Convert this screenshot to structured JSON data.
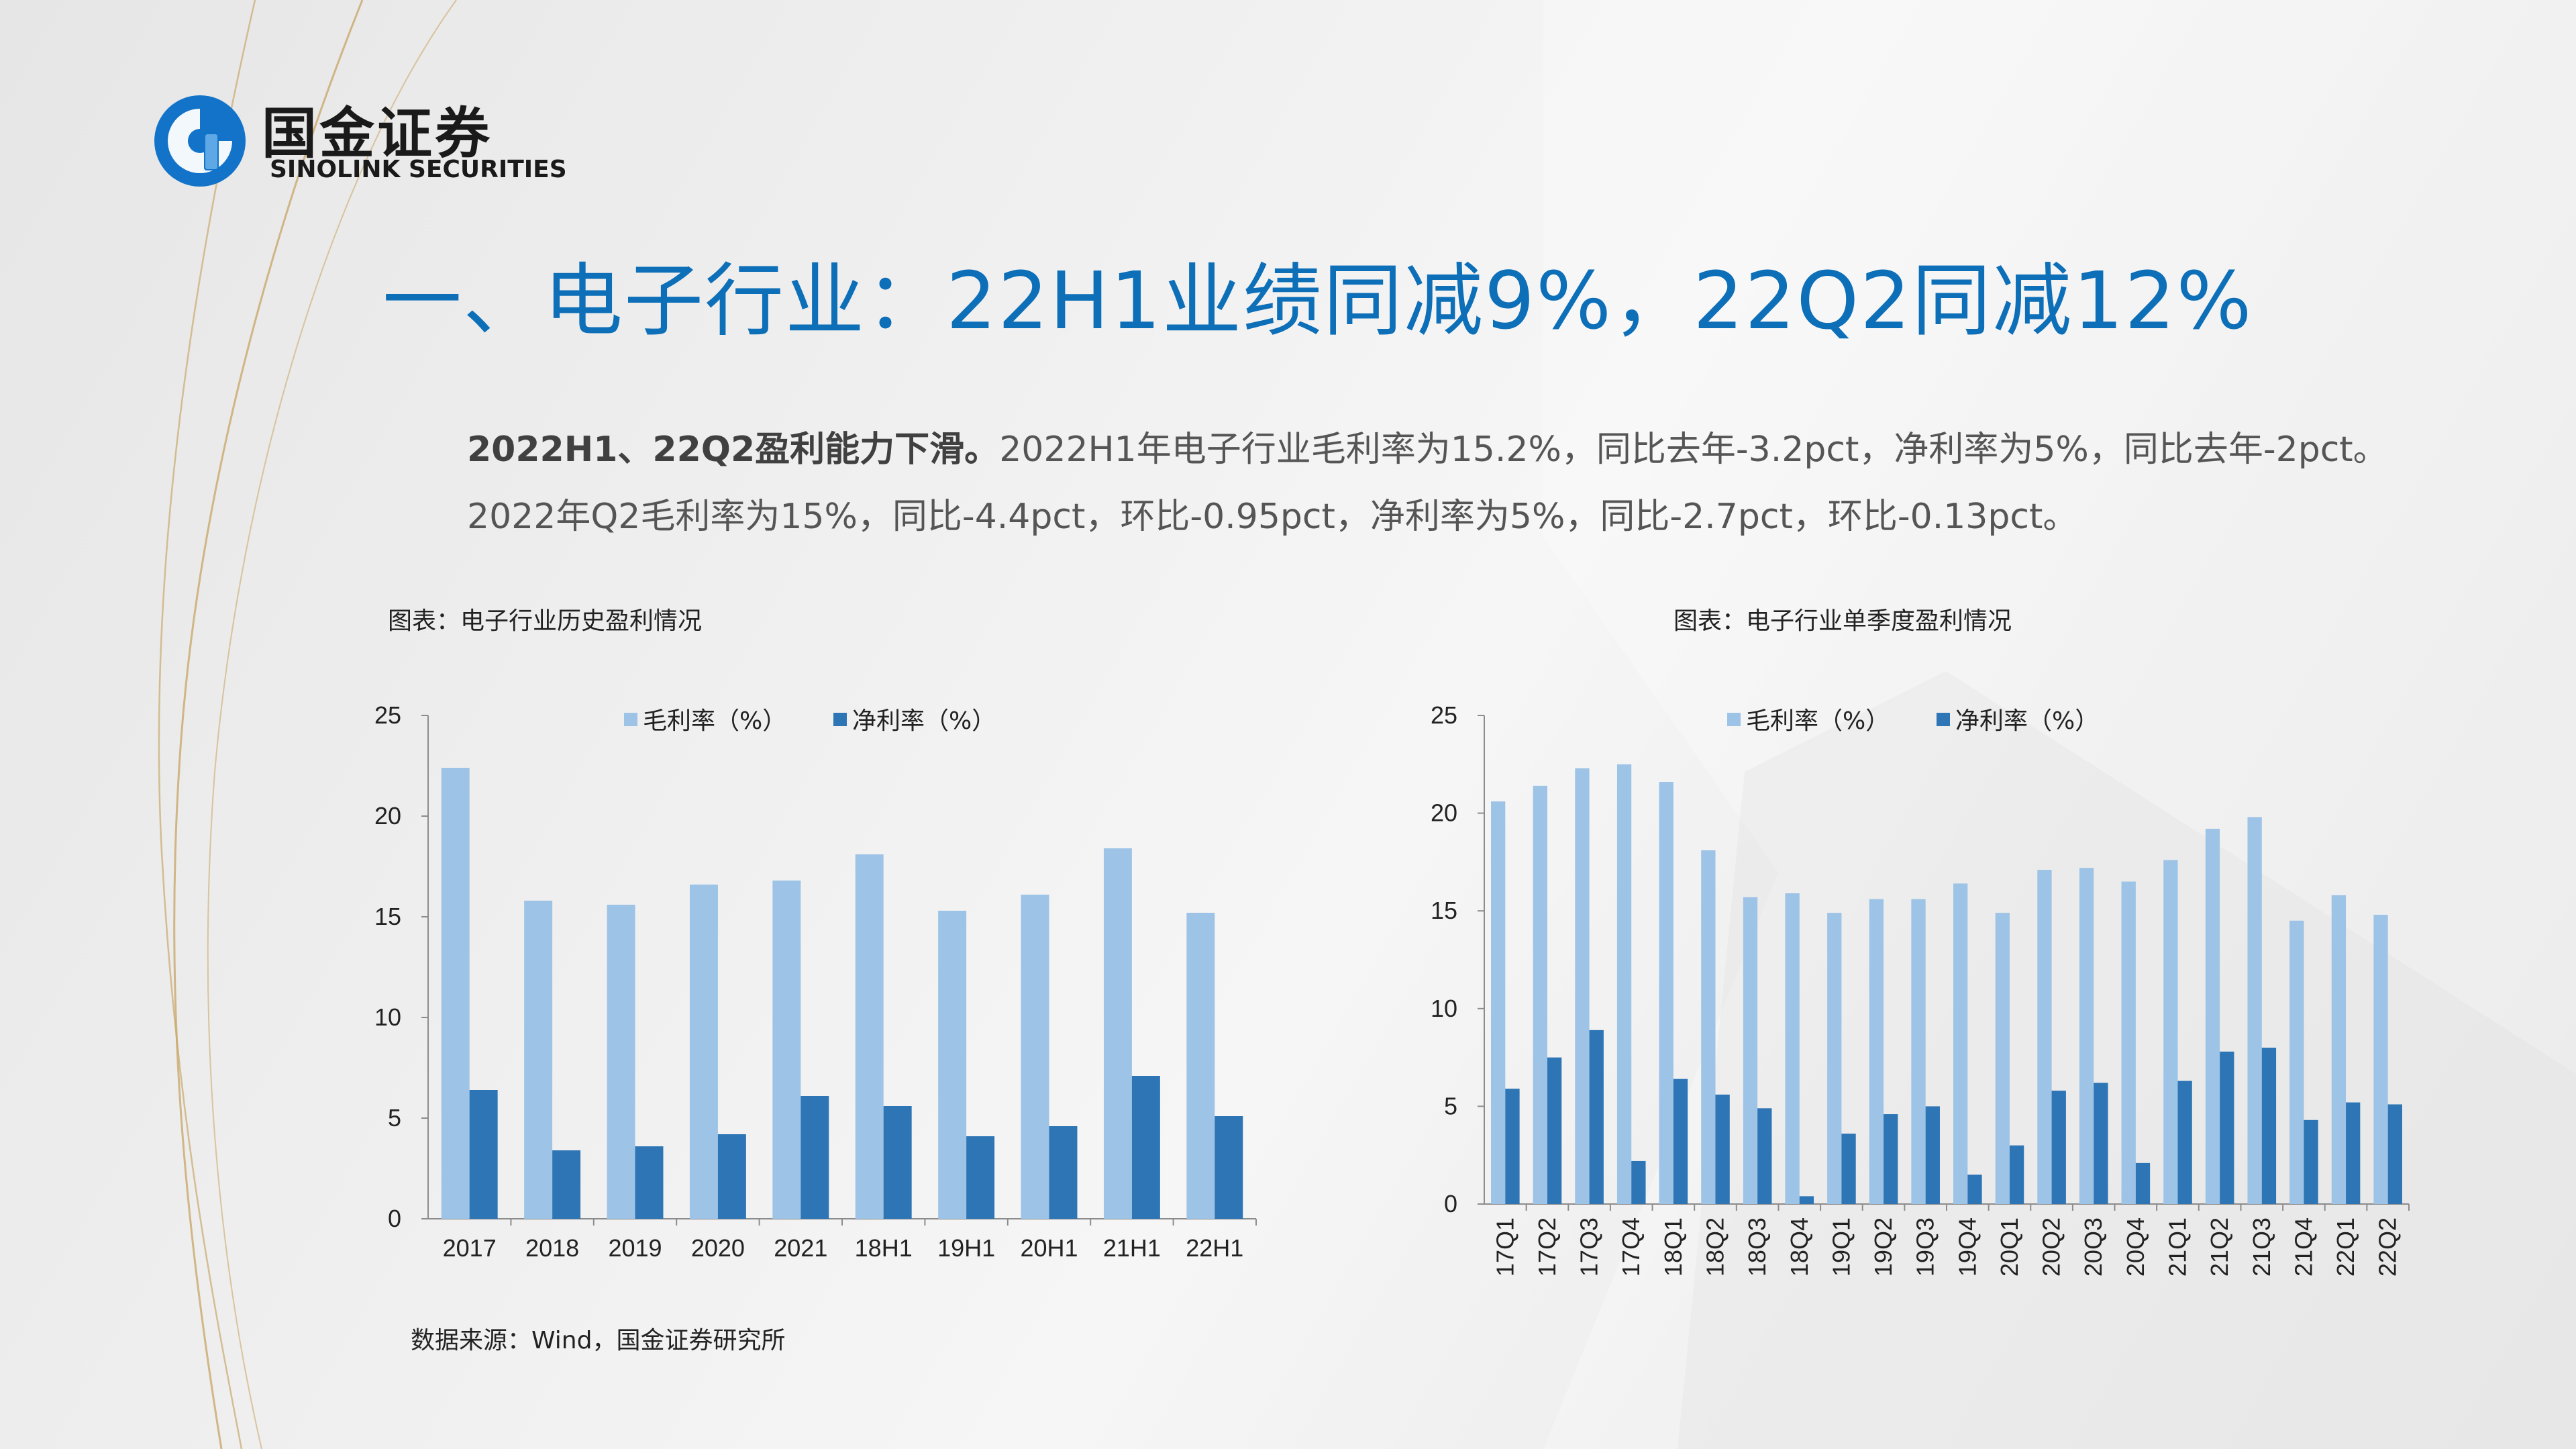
{
  "brand": {
    "name_cn": "国金证券",
    "name_en": "SINOLINK SECURITIES",
    "colors": {
      "blue": "#1273c9",
      "gold": "#c9a86b"
    }
  },
  "title": "一、电子行业：22H1业绩同减9%，22Q2同减12%",
  "summary": {
    "lead": "2022H1、22Q2盈利能力下滑。",
    "line1_rest": "2022H1年电子行业毛利率为15.2%，同比去年-3.2pct，净利率为5%，同比去年-2pct。",
    "line2": "2022年Q2毛利率为15%，同比-4.4pct，环比-0.95pct，净利率为5%，同比-2.7pct，环比-0.13pct。"
  },
  "source": "数据来源：Wind，国金证券研究所",
  "chart_data": [
    {
      "type": "bar",
      "caption": "图表：电子行业历史盈利情况",
      "categories": [
        "2017",
        "2018",
        "2019",
        "2020",
        "2021",
        "18H1",
        "19H1",
        "20H1",
        "21H1",
        "22H1"
      ],
      "series": [
        {
          "name": "毛利率（%）",
          "color": "#9dc3e6",
          "values": [
            22.4,
            15.8,
            15.6,
            16.6,
            16.8,
            18.1,
            15.3,
            16.1,
            18.4,
            15.2
          ]
        },
        {
          "name": "净利率（%）",
          "color": "#2e75b6",
          "values": [
            6.4,
            3.4,
            3.6,
            4.2,
            6.1,
            5.6,
            4.1,
            4.6,
            7.1,
            5.1
          ]
        }
      ],
      "ylim": [
        0,
        25
      ],
      "yticks": [
        0,
        5,
        10,
        15,
        20,
        25
      ],
      "legend": "top-center",
      "grid": false
    },
    {
      "type": "bar",
      "caption": "图表：电子行业单季度盈利情况",
      "categories": [
        "17Q1",
        "17Q2",
        "17Q3",
        "17Q4",
        "18Q1",
        "18Q2",
        "18Q3",
        "18Q4",
        "19Q1",
        "19Q2",
        "19Q3",
        "19Q4",
        "20Q1",
        "20Q2",
        "20Q3",
        "20Q4",
        "21Q1",
        "21Q2",
        "21Q3",
        "21Q4",
        "22Q1",
        "22Q2"
      ],
      "series": [
        {
          "name": "毛利率（%）",
          "color": "#9dc3e6",
          "values": [
            20.6,
            21.4,
            22.3,
            22.5,
            21.6,
            18.1,
            15.7,
            15.9,
            14.9,
            15.6,
            15.6,
            16.4,
            14.9,
            17.1,
            17.2,
            16.5,
            17.6,
            19.2,
            19.8,
            14.5,
            15.8,
            14.8
          ]
        },
        {
          "name": "净利率（%）",
          "color": "#2e75b6",
          "values": [
            5.9,
            7.5,
            8.9,
            2.2,
            6.4,
            5.6,
            4.9,
            0.4,
            3.6,
            4.6,
            5.0,
            1.5,
            3.0,
            5.8,
            6.2,
            2.1,
            6.3,
            7.8,
            8.0,
            4.3,
            5.2,
            5.1
          ]
        }
      ],
      "ylim": [
        0,
        25
      ],
      "yticks": [
        0,
        5,
        10,
        15,
        20,
        25
      ],
      "legend": "top-center",
      "grid": false
    }
  ]
}
